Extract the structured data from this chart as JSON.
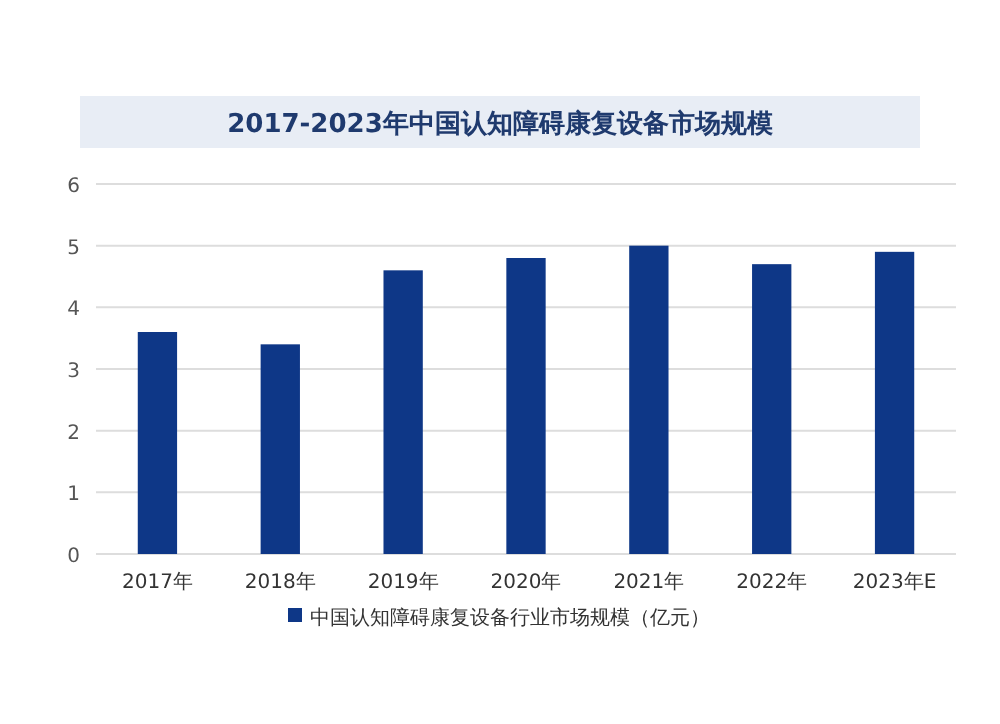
{
  "chart_data": {
    "type": "bar",
    "title": "2017-2023年中国认知障碍康复设备市场规模",
    "categories": [
      "2017年",
      "2018年",
      "2019年",
      "2020年",
      "2021年",
      "2022年",
      "2023年E"
    ],
    "series": [
      {
        "name": "中国认知障碍康复设备行业市场规模（亿元）",
        "color": "#0e3787",
        "values": [
          3.6,
          3.4,
          4.6,
          4.8,
          5.0,
          4.7,
          4.9
        ]
      }
    ],
    "ylim": [
      0,
      6
    ],
    "yticks": [
      0,
      1,
      2,
      3,
      4,
      5,
      6
    ],
    "grid": "y",
    "legend": "bottom"
  }
}
